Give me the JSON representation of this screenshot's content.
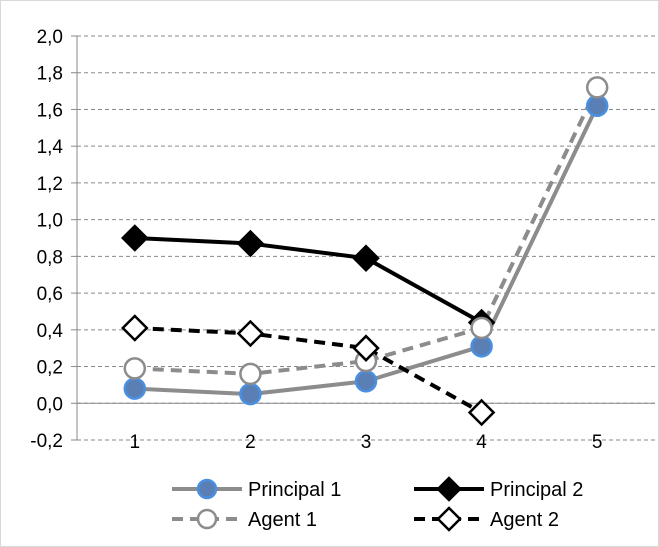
{
  "chart_data": {
    "type": "line",
    "title": "",
    "xlabel": "",
    "ylabel": "",
    "x": [
      1,
      2,
      3,
      4,
      5
    ],
    "x_tick_labels": [
      "1",
      "2",
      "3",
      "4",
      "5"
    ],
    "ylim": [
      -0.2,
      2.0
    ],
    "y_tick_values": [
      -0.2,
      0.0,
      0.2,
      0.4,
      0.6,
      0.8,
      1.0,
      1.2,
      1.4,
      1.6,
      1.8,
      2.0
    ],
    "y_tick_labels": [
      "-0,2",
      "0,0",
      "0,2",
      "0,4",
      "0,6",
      "0,8",
      "1,0",
      "1,2",
      "1,4",
      "1,6",
      "1,8",
      "2,0"
    ],
    "grid": "horizontal dashed",
    "legend_position": "bottom",
    "series": [
      {
        "name": "Principal 1",
        "x": [
          1,
          2,
          3,
          4,
          5
        ],
        "values": [
          0.08,
          0.05,
          0.12,
          0.31,
          1.62
        ],
        "color": "#8c8c8c",
        "line_style": "solid",
        "marker": "circle",
        "marker_fill": "#5a7fb5",
        "marker_stroke": "#4a90e2"
      },
      {
        "name": "Principal 2",
        "x": [
          1,
          2,
          3,
          4
        ],
        "values": [
          0.9,
          0.87,
          0.79,
          0.44
        ],
        "color": "#000000",
        "line_style": "solid",
        "marker": "diamond",
        "marker_fill": "#000000",
        "marker_stroke": "#000000"
      },
      {
        "name": "Agent 1",
        "x": [
          1,
          2,
          3,
          4,
          5
        ],
        "values": [
          0.19,
          0.16,
          0.23,
          0.41,
          1.72
        ],
        "color": "#8c8c8c",
        "line_style": "dashed",
        "marker": "circle",
        "marker_fill": "#ffffff",
        "marker_stroke": "#8c8c8c"
      },
      {
        "name": "Agent 2",
        "x": [
          1,
          2,
          3,
          4
        ],
        "values": [
          0.41,
          0.38,
          0.3,
          -0.05
        ],
        "color": "#000000",
        "line_style": "dashed",
        "marker": "diamond",
        "marker_fill": "#ffffff",
        "marker_stroke": "#000000"
      }
    ]
  }
}
